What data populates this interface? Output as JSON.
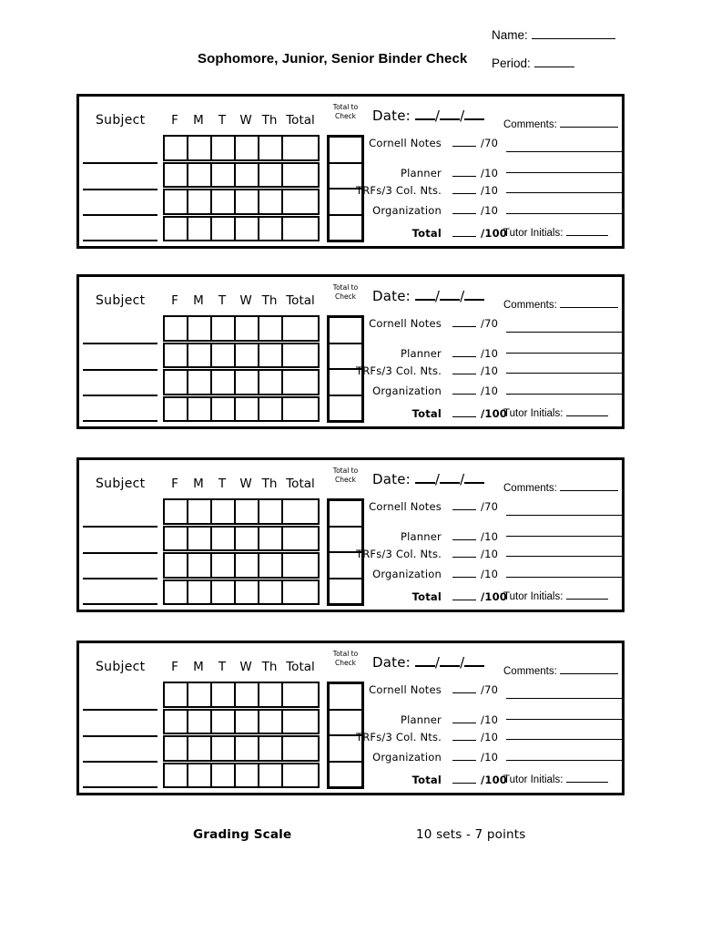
{
  "header": {
    "title": "Sophomore, Junior, Senior Binder Check",
    "name_label": "Name:",
    "period_label": "Period:"
  },
  "section": {
    "subject_label": "Subject",
    "day_headers": [
      "F",
      "M",
      "T",
      "W",
      "Th",
      "Total"
    ],
    "ttc_line1": "Total to",
    "ttc_line2": "Check",
    "date_label": "Date:",
    "date_separator": "/",
    "score_rows": [
      {
        "label": "Cornell Notes",
        "max": "/70"
      },
      {
        "label": "Planner",
        "max": "/10"
      },
      {
        "label": "TRFs/3 Col. Nts.",
        "max": "/10"
      },
      {
        "label": "Organization",
        "max": "/10"
      }
    ],
    "total_label": "Total",
    "total_max": "/100",
    "comments_label": "Comments:",
    "tutor_label": "Tutor Initials:"
  },
  "layout": {
    "section_count": 4
  },
  "footer": {
    "grading_scale": "Grading Scale",
    "sets_info": "10 sets - 7 points"
  },
  "colors": {
    "ink": "#000000",
    "paper": "#ffffff"
  }
}
